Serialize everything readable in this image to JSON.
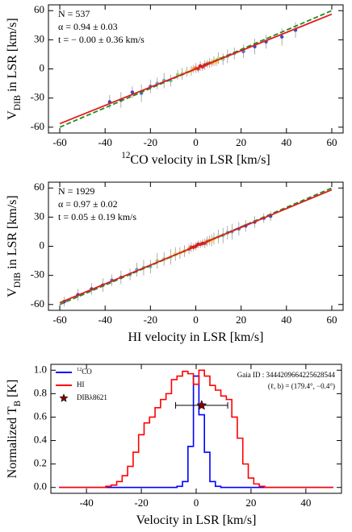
{
  "chart_data": [
    {
      "type": "scatter",
      "xlabel": [
        {
          "text": "12",
          "sup": true
        },
        {
          "text": "CO velocity in LSR [km/s]"
        }
      ],
      "ylabel": [
        {
          "text": "V"
        },
        {
          "text": "DIB",
          "sub": true
        },
        {
          "text": " in LSR [km/s]"
        }
      ],
      "annotations": [
        "N = 537",
        "α = 0.94 ± 0.03",
        "t = − 0.00 ± 0.36 km/s"
      ],
      "xlim": [
        -65,
        65
      ],
      "ylim": [
        -66,
        66
      ],
      "xticks": [
        -60,
        -40,
        -20,
        0,
        20,
        40,
        60
      ],
      "yticks": [
        -60,
        -30,
        0,
        30,
        60
      ],
      "points": {
        "x": [
          -38,
          -33,
          -28,
          -24,
          -20,
          -17,
          -14,
          -11,
          -8,
          -6,
          -4,
          -2,
          -1,
          0,
          1,
          2,
          3,
          4,
          5,
          6,
          7,
          8,
          9,
          10,
          12,
          14,
          17,
          21,
          26,
          31,
          38,
          44
        ],
        "values": [
          -34,
          -32,
          -24,
          -25,
          -18,
          -15,
          -12,
          -12,
          -6,
          -5,
          -3,
          -2,
          0,
          1,
          0,
          3,
          2,
          4,
          5,
          6,
          6,
          8,
          7,
          11,
          10,
          13,
          16,
          18,
          23,
          28,
          33,
          40
        ],
        "errors": [
          7,
          8,
          6,
          9,
          7,
          6,
          8,
          6,
          5,
          6,
          5,
          5,
          4,
          5,
          4,
          5,
          4,
          5,
          4,
          5,
          4,
          5,
          4,
          6,
          6,
          7,
          6,
          7,
          8,
          7,
          9,
          8
        ],
        "colors": [
          "#3b4cc0",
          "#3b4cc0",
          "#3b4cc0",
          "#4f6fd6",
          "#4f6fd6",
          "#57a9c9",
          "#57a9c9",
          "#6cc5a1",
          "#8fd17a",
          "#8fd17a",
          "#c6de5a",
          "#f2d13d",
          "#f7a33a",
          "#f06a2e",
          "#e3342a",
          "#d7191c",
          "#e3342a",
          "#d7191c",
          "#e3342a",
          "#f06a2e",
          "#f7a33a",
          "#f2d13d",
          "#f2d13d",
          "#c6de5a",
          "#8fd17a",
          "#6cc5a1",
          "#57a9c9",
          "#4f6fd6",
          "#3b4cc0",
          "#3b4cc0",
          "#3b4cc0",
          "#3b4cc0"
        ]
      },
      "lines": [
        {
          "x": [
            -60,
            60
          ],
          "values": [
            -60,
            60
          ],
          "color": "#228b22",
          "dash": true
        },
        {
          "x": [
            -60,
            60
          ],
          "values": [
            -56.4,
            56.4
          ],
          "color": "#e41a1c",
          "dash": false
        }
      ]
    },
    {
      "type": "scatter",
      "xlabel": [
        {
          "text": "HI velocity in LSR [km/s]"
        }
      ],
      "ylabel": [
        {
          "text": "V"
        },
        {
          "text": "DIB",
          "sub": true
        },
        {
          "text": " in LSR [km/s]"
        }
      ],
      "annotations": [
        "N = 1929",
        "α = 0.97 ± 0.02",
        "t = 0.05 ± 0.19 km/s"
      ],
      "xlim": [
        -65,
        65
      ],
      "ylim": [
        -66,
        66
      ],
      "xticks": [
        -60,
        -40,
        -20,
        0,
        20,
        40,
        60
      ],
      "yticks": [
        -60,
        -30,
        0,
        30,
        60
      ],
      "points": {
        "x": [
          -58,
          -52,
          -46,
          -41,
          -37,
          -33,
          -29,
          -26,
          -23,
          -20,
          -17,
          -14,
          -11,
          -9,
          -7,
          -5,
          -3,
          -2,
          -1,
          0,
          1,
          2,
          3,
          4,
          5,
          6,
          7,
          8,
          10,
          12,
          14,
          16,
          19,
          22,
          26,
          30,
          33
        ],
        "values": [
          -57,
          -50,
          -44,
          -40,
          -35,
          -32,
          -29,
          -24,
          -22,
          -21,
          -15,
          -13,
          -11,
          -8,
          -7,
          -5,
          -3,
          -1,
          -1,
          0,
          2,
          2,
          3,
          3,
          5,
          6,
          6,
          8,
          10,
          11,
          14,
          15,
          18,
          21,
          25,
          29,
          31
        ],
        "errors": [
          5,
          6,
          6,
          7,
          6,
          7,
          6,
          7,
          8,
          7,
          8,
          7,
          8,
          7,
          6,
          6,
          5,
          5,
          4,
          4,
          4,
          4,
          4,
          5,
          5,
          5,
          6,
          6,
          7,
          8,
          7,
          8,
          7,
          6,
          6,
          5,
          5
        ],
        "colors": [
          "#3b4cc0",
          "#3b4cc0",
          "#3b4cc0",
          "#3b4cc0",
          "#4f6fd6",
          "#4f6fd6",
          "#57a9c9",
          "#57a9c9",
          "#6cc5a1",
          "#6cc5a1",
          "#8fd17a",
          "#8fd17a",
          "#c6de5a",
          "#c6de5a",
          "#f2d13d",
          "#f7a33a",
          "#f06a2e",
          "#e3342a",
          "#d7191c",
          "#d7191c",
          "#d7191c",
          "#e3342a",
          "#d7191c",
          "#e3342a",
          "#f06a2e",
          "#f7a33a",
          "#f2d13d",
          "#c6de5a",
          "#8fd17a",
          "#6cc5a1",
          "#57a9c9",
          "#57a9c9",
          "#4f6fd6",
          "#3b4cc0",
          "#3b4cc0",
          "#3b4cc0",
          "#3b4cc0"
        ]
      },
      "lines": [
        {
          "x": [
            -60,
            60
          ],
          "values": [
            -60,
            60
          ],
          "color": "#228b22",
          "dash": true
        },
        {
          "x": [
            -60,
            60
          ],
          "values": [
            -58.2,
            58.2
          ],
          "color": "#e41a1c",
          "dash": false
        }
      ]
    },
    {
      "type": "step",
      "xlabel": [
        {
          "text": "Velocity in LSR [km/s]"
        }
      ],
      "ylabel": [
        {
          "text": "Normalized "
        },
        {
          "text": "T"
        },
        {
          "text": "B",
          "sub": true
        },
        {
          "text": " [K]"
        }
      ],
      "annotations": [
        "Gaia ID : 3444209664225628544",
        "(ℓ, b) = (179.4°, −0.4°)"
      ],
      "xlim": [
        -53,
        53
      ],
      "ylim": [
        -0.05,
        1.05
      ],
      "xticks": [
        -40,
        -20,
        0,
        20,
        40
      ],
      "yticks": [
        {
          "value": 0,
          "label": "0.0"
        },
        {
          "value": 0.2,
          "label": "0.2"
        },
        {
          "value": 0.4,
          "label": "0.4"
        },
        {
          "value": 0.6,
          "label": "0.6"
        },
        {
          "value": 0.8,
          "label": "0.8"
        },
        {
          "value": 1,
          "label": "1.0"
        }
      ],
      "x": [
        -50,
        -48,
        -46,
        -44,
        -42,
        -40,
        -38,
        -36,
        -34,
        -32,
        -30,
        -28,
        -26,
        -24,
        -22,
        -20,
        -18,
        -16,
        -14,
        -12,
        -10,
        -8,
        -6,
        -4,
        -2,
        0,
        2,
        4,
        6,
        8,
        10,
        12,
        14,
        16,
        18,
        20,
        22,
        24,
        26,
        28,
        30,
        32,
        34,
        36,
        38,
        40,
        42,
        44,
        46,
        48,
        50
      ],
      "series": [
        {
          "name": [
            {
              "text": "12",
              "sup": true
            },
            {
              "text": "CO"
            }
          ],
          "color": "#0000ff",
          "values": [
            0,
            0,
            0,
            0,
            0,
            0,
            0,
            0,
            0,
            0,
            0,
            0,
            0,
            0,
            0,
            0,
            0,
            0,
            0,
            0,
            0,
            0,
            0.01,
            0.05,
            0.35,
            0.95,
            0.62,
            0.3,
            0.05,
            0.01,
            0,
            0,
            0,
            0,
            0,
            0,
            0,
            0,
            0,
            0,
            0,
            0,
            0,
            0,
            0,
            0,
            0,
            0,
            0,
            0,
            0
          ]
        },
        {
          "name": [
            {
              "text": "HI"
            }
          ],
          "color": "#ff0000",
          "values": [
            0,
            0,
            0,
            0,
            0,
            0,
            0,
            0,
            0,
            0.01,
            0.02,
            0.05,
            0.1,
            0.18,
            0.3,
            0.45,
            0.55,
            0.6,
            0.68,
            0.75,
            0.8,
            0.92,
            0.95,
            0.99,
            0.97,
            0.88,
            1.0,
            0.95,
            0.87,
            0.83,
            0.78,
            0.75,
            0.6,
            0.42,
            0.2,
            0.08,
            0.03,
            0.01,
            0,
            0,
            0,
            0,
            0,
            0,
            0,
            0,
            0,
            0,
            0,
            0,
            0
          ]
        }
      ],
      "point": {
        "name": "DIBλ8621",
        "x": 2,
        "xerr": 9.5,
        "y": 0.7,
        "color": "#8b0000"
      }
    }
  ]
}
